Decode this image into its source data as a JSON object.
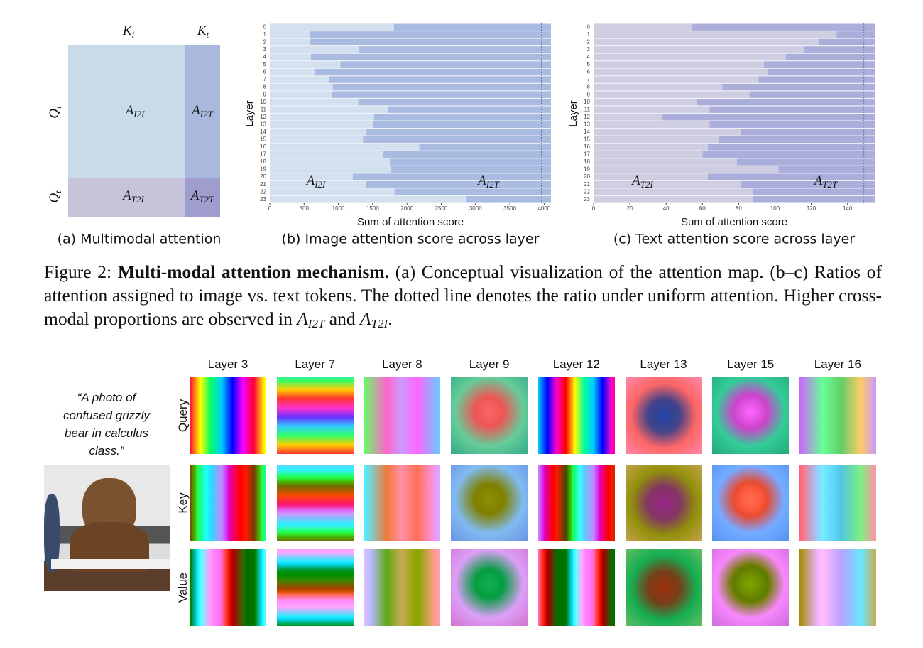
{
  "figure2": {
    "panel_a": {
      "k_i": {
        "base": "K",
        "sub": "i"
      },
      "k_t": {
        "base": "K",
        "sub": "t"
      },
      "q_i": {
        "base": "Q",
        "sub": "i"
      },
      "q_t": {
        "base": "Q",
        "sub": "t"
      },
      "a_i2i": {
        "base": "A",
        "sub": "I2I"
      },
      "a_i2t": {
        "base": "A",
        "sub": "I2T"
      },
      "a_t2i": {
        "base": "A",
        "sub": "T2I"
      },
      "a_t2t": {
        "base": "A",
        "sub": "T2T"
      },
      "subtitle": "(a) Multimodal attention"
    },
    "chart_b": {
      "type": "bar",
      "orientation": "horizontal",
      "stacked": true,
      "ylabel": "Layer",
      "xlabel": "Sum of attention score",
      "subtitle": "(b) Image attention score across layer",
      "categories": [
        "0",
        "1",
        "2",
        "3",
        "4",
        "5",
        "6",
        "7",
        "8",
        "9",
        "10",
        "11",
        "12",
        "13",
        "14",
        "15",
        "16",
        "17",
        "18",
        "19",
        "20",
        "21",
        "22",
        "23"
      ],
      "series": [
        {
          "label": {
            "base": "A",
            "sub": "I2I"
          },
          "color": "#d3e0ef",
          "values": [
            1810,
            590,
            580,
            1300,
            600,
            1030,
            660,
            860,
            920,
            900,
            1290,
            1730,
            1520,
            1510,
            1410,
            1360,
            2180,
            1650,
            1750,
            1770,
            1210,
            1400,
            1820,
            2870
          ]
        },
        {
          "label": {
            "base": "A",
            "sub": "I2T"
          },
          "color": "#a9bbe0",
          "values": [
            2290,
            3510,
            3520,
            2800,
            3500,
            3070,
            3440,
            3240,
            3180,
            3200,
            2810,
            2370,
            2580,
            2590,
            2690,
            2740,
            1920,
            2450,
            2350,
            2330,
            2890,
            2700,
            2280,
            1230
          ]
        }
      ],
      "reference_line": 3960,
      "xlim": [
        0,
        4100
      ],
      "xticks": [
        0,
        500,
        1000,
        1500,
        2000,
        2500,
        3000,
        3500,
        4000
      ]
    },
    "chart_c": {
      "type": "bar",
      "orientation": "horizontal",
      "stacked": true,
      "ylabel": "Layer",
      "xlabel": "Sum of attention score",
      "subtitle": "(c) Text attention score across layer",
      "categories": [
        "0",
        "1",
        "2",
        "3",
        "4",
        "5",
        "6",
        "7",
        "8",
        "9",
        "10",
        "11",
        "12",
        "13",
        "14",
        "15",
        "16",
        "17",
        "18",
        "19",
        "20",
        "21",
        "22",
        "23"
      ],
      "series": [
        {
          "label": {
            "base": "A",
            "sub": "T2I"
          },
          "color": "#cfcde1",
          "values": [
            54,
            134,
            124,
            116,
            106,
            94,
            96,
            91,
            71,
            86,
            57,
            64,
            38,
            64,
            81,
            69,
            63,
            60,
            79,
            102,
            63,
            81,
            88,
            88
          ]
        },
        {
          "label": {
            "base": "A",
            "sub": "T2T"
          },
          "color": "#abaedb",
          "values": [
            101,
            21,
            31,
            39,
            49,
            61,
            59,
            64,
            84,
            69,
            98,
            91,
            117,
            91,
            74,
            86,
            92,
            95,
            76,
            53,
            92,
            74,
            67,
            67
          ]
        }
      ],
      "reference_line": 149,
      "xlim": [
        0,
        155
      ],
      "xticks": [
        0,
        20,
        40,
        60,
        80,
        100,
        120,
        140
      ]
    },
    "caption": {
      "label": "Figure 2:",
      "title": "Multi-modal attention mechanism.",
      "text": "(a) Conceptual visualization of the attention map. (b–c) Ratios of attention assigned to image vs. text tokens. The dotted line denotes the ratio under uniform attention. Higher cross-modal proportions are observed in",
      "math1": {
        "base": "A",
        "sub": "I2T"
      },
      "joiner": "and",
      "math2": {
        "base": "A",
        "sub": "T2I"
      },
      "end": "."
    }
  },
  "figure3": {
    "prompt": [
      "“A photo of",
      "confused grizzly",
      "bear in calculus",
      "class.”"
    ],
    "columns": [
      "Layer 3",
      "Layer 7",
      "Layer 8",
      "Layer 9",
      "Layer 12",
      "Layer 13",
      "Layer 15",
      "Layer 16"
    ],
    "rows": [
      "Query",
      "Key",
      "Value"
    ]
  }
}
